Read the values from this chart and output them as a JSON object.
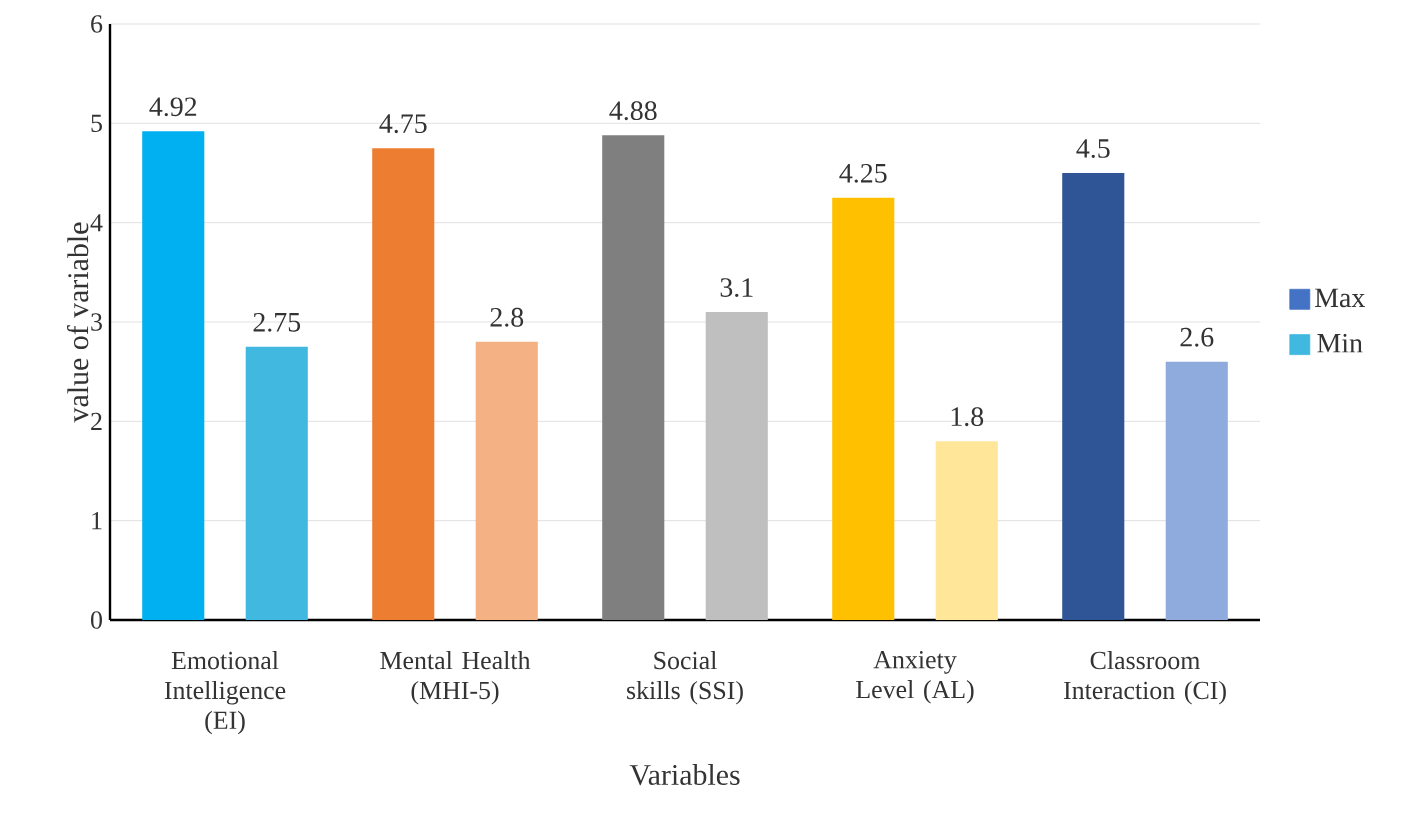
{
  "chart_data": {
    "type": "bar",
    "xlabel": "Variables",
    "ylabel": "value of variable",
    "categories": [
      "Emotional Intelligence (EI)",
      "Mental Health (MHI-5)",
      "Social skills (SSI)",
      "Anxiety Level (AL)",
      "Classroom Interaction (CI)"
    ],
    "series": [
      {
        "name": "Max",
        "color": "#4472c4",
        "colors": [
          "#00b0f0",
          "#ed7d31",
          "#7f7f7f",
          "#ffc000",
          "#2f5597"
        ],
        "values": [
          4.92,
          4.75,
          4.88,
          4.25,
          4.5
        ]
      },
      {
        "name": "Min",
        "color": "#40b8e0",
        "colors": [
          "#40b8e0",
          "#f4b183",
          "#bfbfbf",
          "#ffe699",
          "#8faadc"
        ],
        "values": [
          2.75,
          2.8,
          3.1,
          1.8,
          2.6
        ]
      }
    ],
    "ylim": [
      0,
      6
    ],
    "yticks": [
      0,
      1,
      2,
      3,
      4,
      5,
      6
    ],
    "grid": "y",
    "legend": "right",
    "data_labels": true
  }
}
